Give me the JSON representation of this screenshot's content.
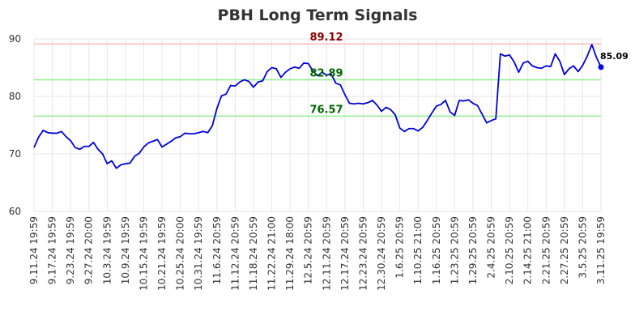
{
  "chart_data": {
    "type": "line",
    "title": "PBH Long Term Signals",
    "xlabel": "",
    "ylabel": "",
    "ylim": [
      60,
      90
    ],
    "y_ticks": [
      60,
      70,
      80,
      90
    ],
    "grid": true,
    "x_tick_labels": [
      "9.11.24 19:59",
      "9.17.24 19:59",
      "9.23.24 19:59",
      "9.27.24 20:00",
      "10.3.24 19:59",
      "10.9.24 19:59",
      "10.15.24 19:59",
      "10.21.24 19:59",
      "10.25.24 20:00",
      "10.31.24 19:59",
      "11.6.24 20:59",
      "11.12.24 20:59",
      "11.18.24 20:59",
      "11.22.24 21:00",
      "11.29.24 18:00",
      "12.5.24 20:59",
      "12.11.24 20:59",
      "12.17.24 20:59",
      "12.23.24 20:59",
      "12.30.24 20:59",
      "1.6.25 20:59",
      "1.10.25 21:00",
      "1.16.25 20:59",
      "1.23.25 20:59",
      "1.29.25 20:59",
      "2.4.25 20:59",
      "2.10.25 20:59",
      "2.14.25 21:00",
      "2.21.25 20:59",
      "2.27.25 20:59",
      "3.5.25 20:59",
      "3.11.25 19:59"
    ],
    "levels": [
      {
        "value": 89.12,
        "label": "89.12",
        "line_color": "#ffbbbb",
        "text_color": "#8b0000"
      },
      {
        "value": 82.89,
        "label": "82.89",
        "line_color": "#90ee90",
        "text_color": "#006400"
      },
      {
        "value": 76.57,
        "label": "76.57",
        "line_color": "#90ee90",
        "text_color": "#006400"
      }
    ],
    "last_value_label": "85.09",
    "series": [
      {
        "color": "#0000dd",
        "values": [
          71.1,
          72.9,
          74.1,
          73.7,
          73.6,
          73.6,
          73.9,
          73.0,
          72.3,
          71.1,
          70.8,
          71.3,
          71.3,
          72.0,
          70.8,
          70.0,
          68.3,
          68.8,
          67.5,
          68.1,
          68.3,
          68.4,
          69.6,
          70.1,
          71.2,
          71.9,
          72.2,
          72.5,
          71.2,
          71.7,
          72.2,
          72.8,
          73.0,
          73.6,
          73.5,
          73.5,
          73.7,
          73.9,
          73.7,
          74.9,
          77.9,
          80.1,
          80.4,
          81.9,
          81.8,
          82.5,
          82.9,
          82.6,
          81.6,
          82.5,
          82.7,
          84.3,
          85.0,
          84.8,
          83.3,
          84.2,
          84.8,
          85.1,
          84.9,
          85.8,
          85.7,
          84.4,
          83.6,
          84.2,
          83.7,
          83.9,
          82.3,
          82.0,
          80.3,
          78.8,
          78.7,
          78.8,
          78.7,
          78.9,
          79.3,
          78.5,
          77.4,
          78.1,
          77.7,
          76.8,
          74.5,
          73.9,
          74.4,
          74.4,
          74.0,
          74.6,
          75.8,
          77.1,
          78.3,
          78.6,
          79.3,
          77.3,
          76.7,
          79.3,
          79.2,
          79.4,
          78.8,
          78.4,
          76.9,
          75.4,
          75.8,
          76.1,
          87.4,
          87.0,
          87.2,
          86.0,
          84.2,
          85.8,
          86.1,
          85.3,
          85.0,
          84.9,
          85.3,
          85.2,
          87.4,
          86.1,
          83.8,
          84.8,
          85.3,
          84.3,
          85.4,
          87.0,
          89.0,
          86.8,
          85.09
        ]
      }
    ]
  }
}
